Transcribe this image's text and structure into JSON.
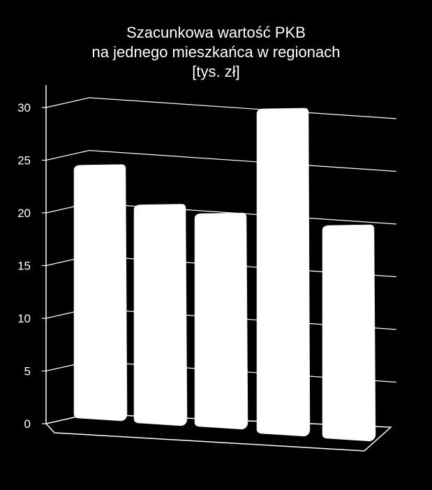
{
  "chart_data": {
    "type": "bar",
    "title_lines": [
      "Szacunkowa wartość PKB",
      "na jednego mieszkańca w regionach",
      "[tys. zł]"
    ],
    "categories": [
      "",
      "",
      "",
      "",
      ""
    ],
    "values": [
      23.8,
      20.5,
      20.0,
      30.6,
      20.0
    ],
    "yticks": [
      0,
      5,
      10,
      15,
      20,
      25,
      30
    ],
    "ylim": [
      0,
      30
    ],
    "grid": true,
    "legend": "none",
    "colors": {
      "background": "#000000",
      "bar": "#ffffff",
      "axis": "#ffffff",
      "text": "#ffffff"
    }
  }
}
